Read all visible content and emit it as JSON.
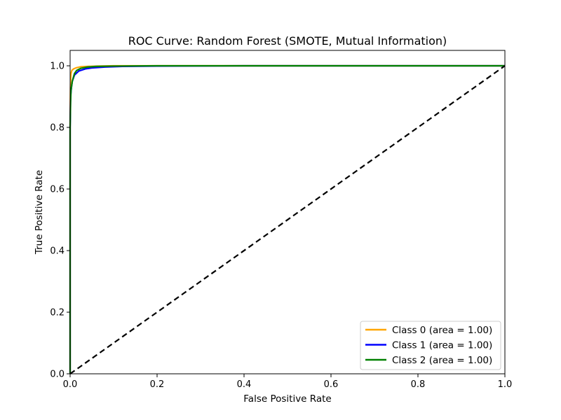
{
  "chart_data": {
    "type": "line",
    "title": "ROC Curve: Random Forest (SMOTE, Mutual Information)",
    "xlabel": "False Positive Rate",
    "ylabel": "True Positive Rate",
    "xlim": [
      0.0,
      1.0
    ],
    "ylim": [
      0.0,
      1.05
    ],
    "x_ticks": [
      "0.0",
      "0.2",
      "0.4",
      "0.6",
      "0.8",
      "1.0"
    ],
    "y_ticks": [
      "0.0",
      "0.2",
      "0.4",
      "0.6",
      "0.8",
      "1.0"
    ],
    "grid": false,
    "legend_position": "lower right",
    "series": [
      {
        "name": "Class 0 (area = 1.00)",
        "color": "#ffa500",
        "x": [
          0.0,
          0.0,
          0.001,
          0.002,
          0.004,
          0.008,
          0.015,
          0.025,
          0.04,
          0.06,
          0.1,
          0.2,
          0.4,
          0.7,
          1.0
        ],
        "y": [
          0.0,
          0.85,
          0.95,
          0.975,
          0.985,
          0.99,
          0.994,
          0.997,
          0.998,
          0.999,
          1.0,
          1.0,
          1.0,
          1.0,
          1.0
        ]
      },
      {
        "name": "Class 1 (area = 1.00)",
        "color": "#0000ff",
        "x": [
          0.0,
          0.0,
          0.001,
          0.003,
          0.005,
          0.01,
          0.02,
          0.035,
          0.05,
          0.08,
          0.12,
          0.2,
          0.4,
          0.7,
          1.0
        ],
        "y": [
          0.0,
          0.8,
          0.9,
          0.93,
          0.95,
          0.97,
          0.983,
          0.99,
          0.993,
          0.996,
          0.998,
          0.999,
          1.0,
          1.0,
          1.0
        ]
      },
      {
        "name": "Class 2 (area = 1.00)",
        "color": "#008000",
        "x": [
          0.0,
          0.0,
          0.001,
          0.002,
          0.005,
          0.01,
          0.015,
          0.025,
          0.04,
          0.06,
          0.1,
          0.2,
          0.4,
          0.7,
          1.0
        ],
        "y": [
          0.0,
          0.8,
          0.88,
          0.92,
          0.95,
          0.975,
          0.985,
          0.992,
          0.996,
          0.998,
          0.999,
          1.0,
          1.0,
          1.0,
          1.0
        ]
      }
    ],
    "reference_line": {
      "style": "dashed",
      "color": "#000000",
      "x": [
        0.0,
        1.0
      ],
      "y": [
        0.0,
        1.0
      ]
    }
  }
}
